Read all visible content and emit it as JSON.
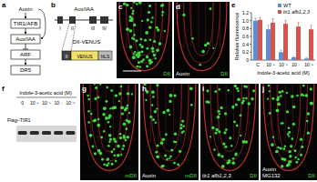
{
  "chart_data": {
    "type": "bar",
    "y_label": "Relative fluorescence",
    "x_label": "Indole-3-acetic acid (M)",
    "categories": [
      "C",
      "10⁻⁹",
      "10⁻⁸",
      "10⁻⁷",
      "10⁻⁶"
    ],
    "series": [
      {
        "name": "WT",
        "color": "#5b8fd0",
        "values": [
          1.0,
          0.78,
          0.2,
          0.07,
          0.04
        ],
        "errors": [
          0.06,
          0.1,
          0.05,
          0.02,
          0.02
        ]
      },
      {
        "name": "tir1 afb1,2,3",
        "color": "#d9534a",
        "values": [
          1.02,
          0.95,
          0.92,
          0.85,
          0.78
        ],
        "errors": [
          0.06,
          0.1,
          0.08,
          0.1,
          0.1
        ]
      }
    ],
    "ylim": [
      0,
      1.2
    ],
    "yticks": [
      0,
      0.2,
      0.4,
      0.6,
      {
        "value": 0.8,
        "label": "0.8"
      },
      {
        "value": 1,
        "label": "1.0"
      },
      1.2
    ],
    "legend": "top-right"
  },
  "figure": {
    "panels": {
      "a": {
        "label": "a",
        "nodes": [
          "Auxin",
          "TIR1/AFB",
          "Aux/IAA",
          "ARF",
          "DR5"
        ]
      },
      "b": {
        "label": "b",
        "title": "Aux/IAA",
        "domains": [
          "I",
          "II",
          "III",
          "IV"
        ],
        "construct": {
          "title": "DII-VENUS",
          "parts": [
            "II",
            "VENUS",
            "NLS"
          ]
        }
      },
      "c": {
        "label": "c",
        "stain": "DII"
      },
      "d": {
        "label": "d",
        "labels": [
          "Auxin"
        ],
        "stain": "DII"
      },
      "e": {
        "label": "e"
      },
      "f": {
        "label": "f",
        "title": "Flag–TIR1",
        "axis_label": "Indole-3-acetic acid (M)",
        "lanes": [
          "0",
          "10⁻⁹",
          "10⁻⁸",
          "10⁻⁷",
          "10⁻⁶"
        ]
      },
      "g": {
        "label": "g",
        "stain": "mDII"
      },
      "h": {
        "label": "h",
        "labels": [
          "Auxin"
        ],
        "stain": "mDII"
      },
      "i": {
        "label": "i",
        "labels": [
          "tir1 afb1,2,3"
        ],
        "stain": "DII"
      },
      "j": {
        "label": "j",
        "labels": [
          "Auxin",
          "MG132"
        ],
        "stain": "DII"
      }
    }
  }
}
